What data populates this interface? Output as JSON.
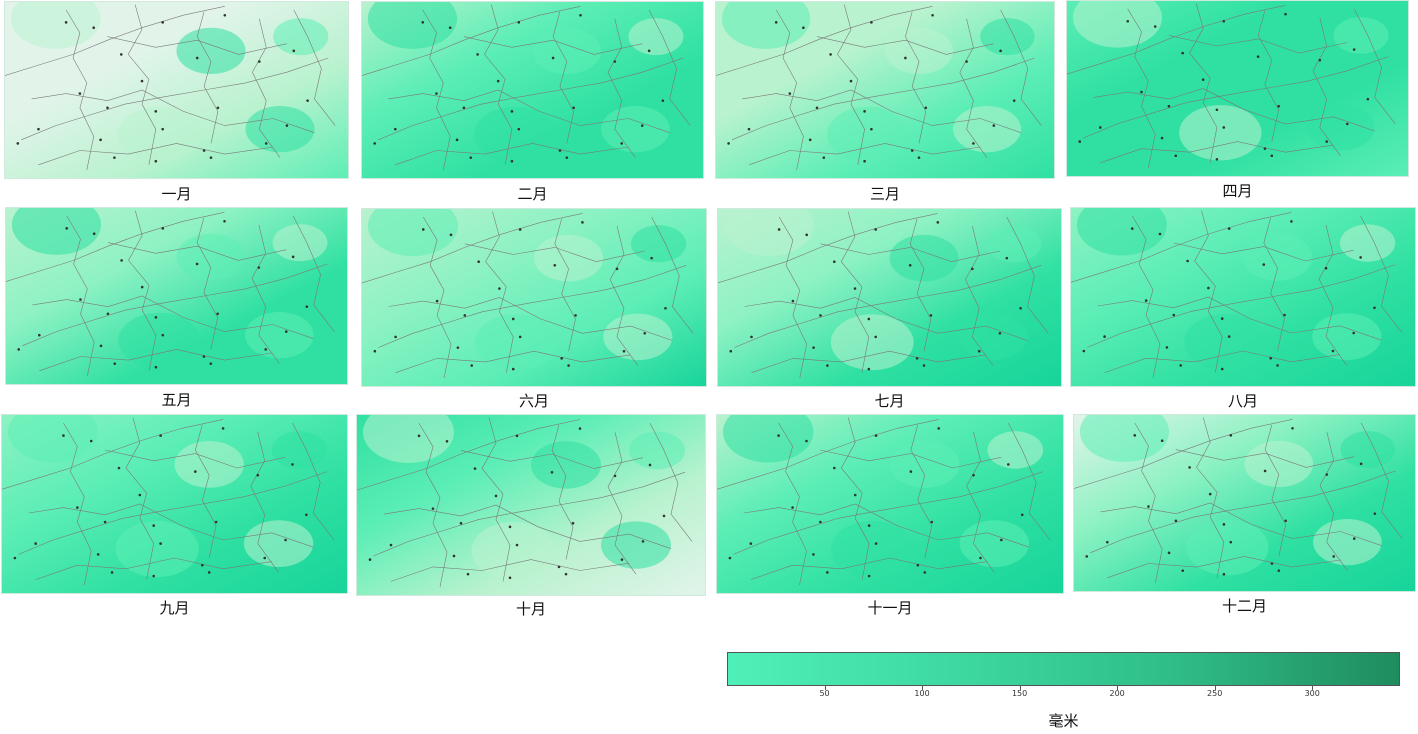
{
  "colorbar": {
    "title": "毫米",
    "min": 0,
    "max": 345,
    "ticks": [
      "50",
      "100",
      "150",
      "200",
      "250",
      "300"
    ],
    "tick_values": [
      50,
      100,
      150,
      200,
      250,
      300
    ],
    "stops": [
      "#4ff0b8",
      "#3ed9a2",
      "#2fbd87",
      "#1f8c5e"
    ]
  },
  "palette": {
    "very_dry": "#e2f4ea",
    "dry": "#b9f2cf",
    "low": "#8ff2c4",
    "mid": "#5ceeb5",
    "high": "#2fe0a2",
    "peak": "#17d49a",
    "border": "#7a7a7a",
    "city": "#333333"
  },
  "months": [
    {
      "label": "一月",
      "base": "very_dry",
      "gradient": [
        "very_dry",
        "very_dry",
        "dry",
        "mid"
      ]
    },
    {
      "label": "二月",
      "base": "mid",
      "gradient": [
        "dry",
        "mid",
        "high",
        "high"
      ]
    },
    {
      "label": "三月",
      "base": "mid",
      "gradient": [
        "dry",
        "dry",
        "mid",
        "high"
      ]
    },
    {
      "label": "四月",
      "base": "mid",
      "gradient": [
        "mid",
        "high",
        "high",
        "mid"
      ]
    },
    {
      "label": "五月",
      "base": "mid",
      "gradient": [
        "dry",
        "low",
        "high",
        "high"
      ]
    },
    {
      "label": "六月",
      "base": "mid",
      "gradient": [
        "dry",
        "low",
        "mid",
        "peak"
      ]
    },
    {
      "label": "七月",
      "base": "mid",
      "gradient": [
        "dry",
        "low",
        "high",
        "peak"
      ]
    },
    {
      "label": "八月",
      "base": "mid",
      "gradient": [
        "low",
        "mid",
        "high",
        "peak"
      ]
    },
    {
      "label": "九月",
      "base": "high",
      "gradient": [
        "low",
        "mid",
        "high",
        "peak"
      ]
    },
    {
      "label": "十月",
      "base": "mid",
      "gradient": [
        "high",
        "mid",
        "dry",
        "very_dry"
      ]
    },
    {
      "label": "十一月",
      "base": "high",
      "gradient": [
        "dry",
        "mid",
        "high",
        "peak"
      ]
    },
    {
      "label": "十二月",
      "base": "high",
      "gradient": [
        "very_dry",
        "low",
        "high",
        "peak"
      ]
    }
  ]
}
